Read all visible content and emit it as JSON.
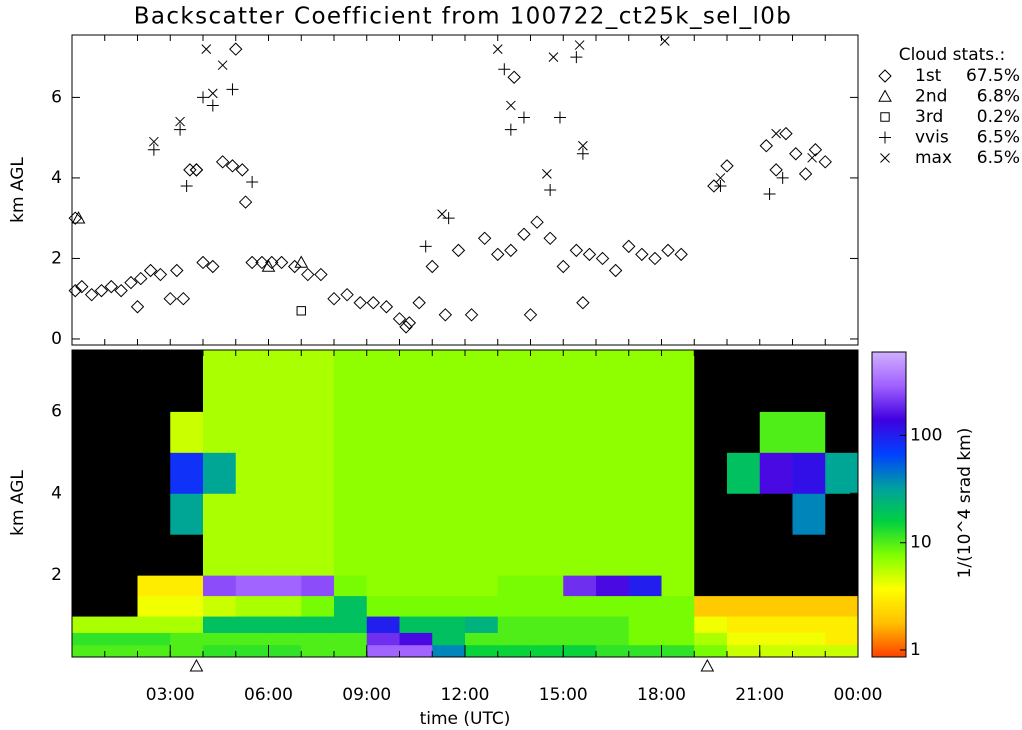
{
  "chart_data": [
    {
      "type": "scatter",
      "title": "Backscatter Coefficient from 100722_ct25k_sel_l0b",
      "ylabel": "km AGL",
      "xlim": [
        0,
        24
      ],
      "ylim": [
        -0.15,
        7.55
      ],
      "yticks": [
        0,
        2,
        4,
        6
      ],
      "xminorticks": [
        0,
        1,
        2,
        3,
        4,
        5,
        6,
        7,
        8,
        9,
        10,
        11,
        12,
        13,
        14,
        15,
        16,
        17,
        18,
        19,
        20,
        21,
        22,
        23,
        24
      ],
      "legend_title": "Cloud stats.:",
      "series": [
        {
          "name": "1st",
          "stat": "67.5%",
          "marker": "diamond",
          "x": [
            0.1,
            0.3,
            0.6,
            0.9,
            1.2,
            1.5,
            1.8,
            2.1,
            2.4,
            2.7,
            3.0,
            3.2,
            3.4,
            3.6,
            3.8,
            4.0,
            4.3,
            4.6,
            4.9,
            5.2,
            5.5,
            5.8,
            6.1,
            6.4,
            6.8,
            7.2,
            7.6,
            8.0,
            8.4,
            8.8,
            9.2,
            9.6,
            10.0,
            10.3,
            10.6,
            11.0,
            11.4,
            11.8,
            12.2,
            12.6,
            13.0,
            13.4,
            13.8,
            14.2,
            14.6,
            15.0,
            15.4,
            15.8,
            16.2,
            16.6,
            17.0,
            17.4,
            17.8,
            18.2,
            18.6,
            19.6,
            20.0,
            21.2,
            21.5,
            21.8,
            22.1,
            22.4,
            22.7,
            23.0,
            0.1,
            2.0,
            3.8,
            5.0,
            5.3,
            10.2,
            13.5,
            14.0,
            15.6
          ],
          "values": [
            1.2,
            1.3,
            1.1,
            1.2,
            1.3,
            1.2,
            1.4,
            1.5,
            1.7,
            1.6,
            1.0,
            1.7,
            1.0,
            4.2,
            4.2,
            1.9,
            1.8,
            4.4,
            4.3,
            4.2,
            1.9,
            1.9,
            1.9,
            1.9,
            1.8,
            1.6,
            1.6,
            1.0,
            1.1,
            0.9,
            0.9,
            0.8,
            0.5,
            0.4,
            0.9,
            1.8,
            0.6,
            2.2,
            0.6,
            2.5,
            2.1,
            2.2,
            2.6,
            2.9,
            2.5,
            1.8,
            2.2,
            2.1,
            2.0,
            1.7,
            2.3,
            2.1,
            2.0,
            2.2,
            2.1,
            3.8,
            4.3,
            4.8,
            4.2,
            5.1,
            4.6,
            4.1,
            4.7,
            4.4,
            3.0,
            0.8,
            4.2,
            7.2,
            3.4,
            0.3,
            6.5,
            0.6,
            0.9
          ]
        },
        {
          "name": "2nd",
          "stat": "6.8%",
          "marker": "triangle",
          "x": [
            0.2,
            6.0,
            7.0
          ],
          "values": [
            3.0,
            1.8,
            1.9
          ]
        },
        {
          "name": "3rd",
          "stat": "0.2%",
          "marker": "square",
          "x": [
            7.0
          ],
          "values": [
            0.7
          ]
        },
        {
          "name": "vvis",
          "stat": "6.5%",
          "marker": "plus",
          "x": [
            2.5,
            3.3,
            3.5,
            4.0,
            4.3,
            4.9,
            5.5,
            10.8,
            11.5,
            13.2,
            13.4,
            13.8,
            14.6,
            14.9,
            15.4,
            15.6,
            19.8,
            21.3,
            21.7
          ],
          "values": [
            4.7,
            5.2,
            3.8,
            6.0,
            5.8,
            6.2,
            3.9,
            2.3,
            3.0,
            6.7,
            5.2,
            5.5,
            3.7,
            5.5,
            7.0,
            4.6,
            3.8,
            3.6,
            4.0
          ]
        },
        {
          "name": "max",
          "stat": "6.5%",
          "marker": "cross",
          "x": [
            2.5,
            3.3,
            4.1,
            4.3,
            4.6,
            11.3,
            13.0,
            13.4,
            14.5,
            14.7,
            15.5,
            15.6,
            18.1,
            19.8,
            21.5,
            22.6
          ],
          "values": [
            4.9,
            5.4,
            7.2,
            6.1,
            6.8,
            3.1,
            7.2,
            5.8,
            4.1,
            7.0,
            7.3,
            4.8,
            7.4,
            4.0,
            5.1,
            4.5
          ]
        }
      ]
    },
    {
      "type": "heatmap",
      "ylabel": "km AGL",
      "xlabel": "time (UTC)",
      "xlim": [
        0,
        24
      ],
      "ylim": [
        0,
        7.5
      ],
      "yticks": [
        2,
        4,
        6
      ],
      "xticks": [
        {
          "value": 3,
          "label": "03:00"
        },
        {
          "value": 6,
          "label": "06:00"
        },
        {
          "value": 9,
          "label": "09:00"
        },
        {
          "value": 12,
          "label": "12:00"
        },
        {
          "value": 15,
          "label": "15:00"
        },
        {
          "value": 18,
          "label": "18:00"
        },
        {
          "value": 21,
          "label": "21:00"
        },
        {
          "value": 24,
          "label": "00:00"
        }
      ],
      "xminorticks": [
        0,
        1,
        2,
        3,
        4,
        5,
        6,
        7,
        8,
        9,
        10,
        11,
        12,
        13,
        14,
        15,
        16,
        17,
        18,
        19,
        20,
        21,
        22,
        23,
        24
      ],
      "markers_x": [
        3.8,
        19.4
      ],
      "x_edges": [
        0,
        1,
        2,
        3,
        4,
        5,
        6,
        7,
        8,
        9,
        10,
        11,
        12,
        13,
        14,
        15,
        16,
        17,
        18,
        19,
        20,
        21,
        22,
        23,
        24
      ],
      "z_edges": [
        0,
        0.3,
        0.6,
        1.0,
        1.5,
        2.0,
        3.0,
        4.0,
        5.0,
        6.0,
        7.5
      ],
      "z": [
        [
          10,
          10,
          10,
          10,
          12,
          12,
          12,
          10,
          10,
          300,
          300,
          40,
          15,
          15,
          15,
          15,
          12,
          12,
          12,
          8,
          5,
          5,
          5,
          5
        ],
        [
          12,
          12,
          12,
          10,
          10,
          10,
          10,
          10,
          10,
          200,
          150,
          20,
          10,
          10,
          10,
          10,
          10,
          8,
          8,
          6,
          4,
          4,
          4,
          3
        ],
        [
          6,
          6,
          6,
          6,
          20,
          20,
          20,
          20,
          20,
          100,
          20,
          20,
          25,
          10,
          10,
          10,
          10,
          8,
          8,
          4,
          3,
          3,
          3,
          3
        ],
        [
          0.5,
          0.5,
          4,
          4,
          5,
          6,
          6,
          8,
          20,
          8,
          8,
          8,
          8,
          8,
          8,
          8,
          8,
          8,
          8,
          2,
          2,
          2,
          2,
          2
        ],
        [
          0.5,
          0.5,
          3,
          3,
          250,
          300,
          300,
          250,
          8,
          7,
          7,
          7,
          7,
          8,
          8,
          200,
          150,
          100,
          7,
          0.5,
          0.5,
          0.5,
          0.5,
          0.5
        ],
        [
          0.5,
          0.5,
          0.5,
          0.5,
          6,
          6,
          6,
          6,
          7,
          7,
          7,
          7,
          7,
          7,
          7,
          7,
          7,
          7,
          7,
          0.5,
          0.5,
          0.5,
          0.5,
          0.5
        ],
        [
          0.5,
          0.5,
          0.5,
          30,
          6,
          6,
          6,
          6,
          7,
          7,
          7,
          7,
          7,
          7,
          7,
          7,
          7,
          7,
          7,
          0.5,
          0.5,
          0.5,
          40,
          0.5
        ],
        [
          0.5,
          0.5,
          0.5,
          80,
          30,
          6,
          6,
          6,
          7,
          7,
          7,
          7,
          7,
          7,
          7,
          7,
          7,
          7,
          7,
          0.5,
          20,
          150,
          120,
          30
        ],
        [
          0.5,
          0.5,
          0.5,
          5,
          6,
          6,
          6,
          6,
          7,
          7,
          7,
          7,
          7,
          7,
          7,
          7,
          7,
          7,
          7,
          0.5,
          0.5,
          10,
          10,
          0.5
        ],
        [
          0.5,
          0.5,
          0.5,
          0.5,
          6,
          6,
          6,
          6,
          7,
          7,
          7,
          7,
          7,
          7,
          7,
          7,
          7,
          7,
          7,
          0.5,
          0.5,
          0.5,
          0.5,
          0.5
        ]
      ],
      "below_color": "#000000",
      "colorbar": {
        "label": "1/(10^4 srad km)",
        "log": true,
        "clim": [
          0.86,
          600
        ],
        "ticks": [
          1,
          10,
          100
        ],
        "colormap": [
          "#ff4000",
          "#ffc000",
          "#ffff00",
          "#80ff00",
          "#00d040",
          "#00a0a0",
          "#0040ff",
          "#4000e0",
          "#a060ff",
          "#d0b0ff"
        ]
      }
    }
  ]
}
